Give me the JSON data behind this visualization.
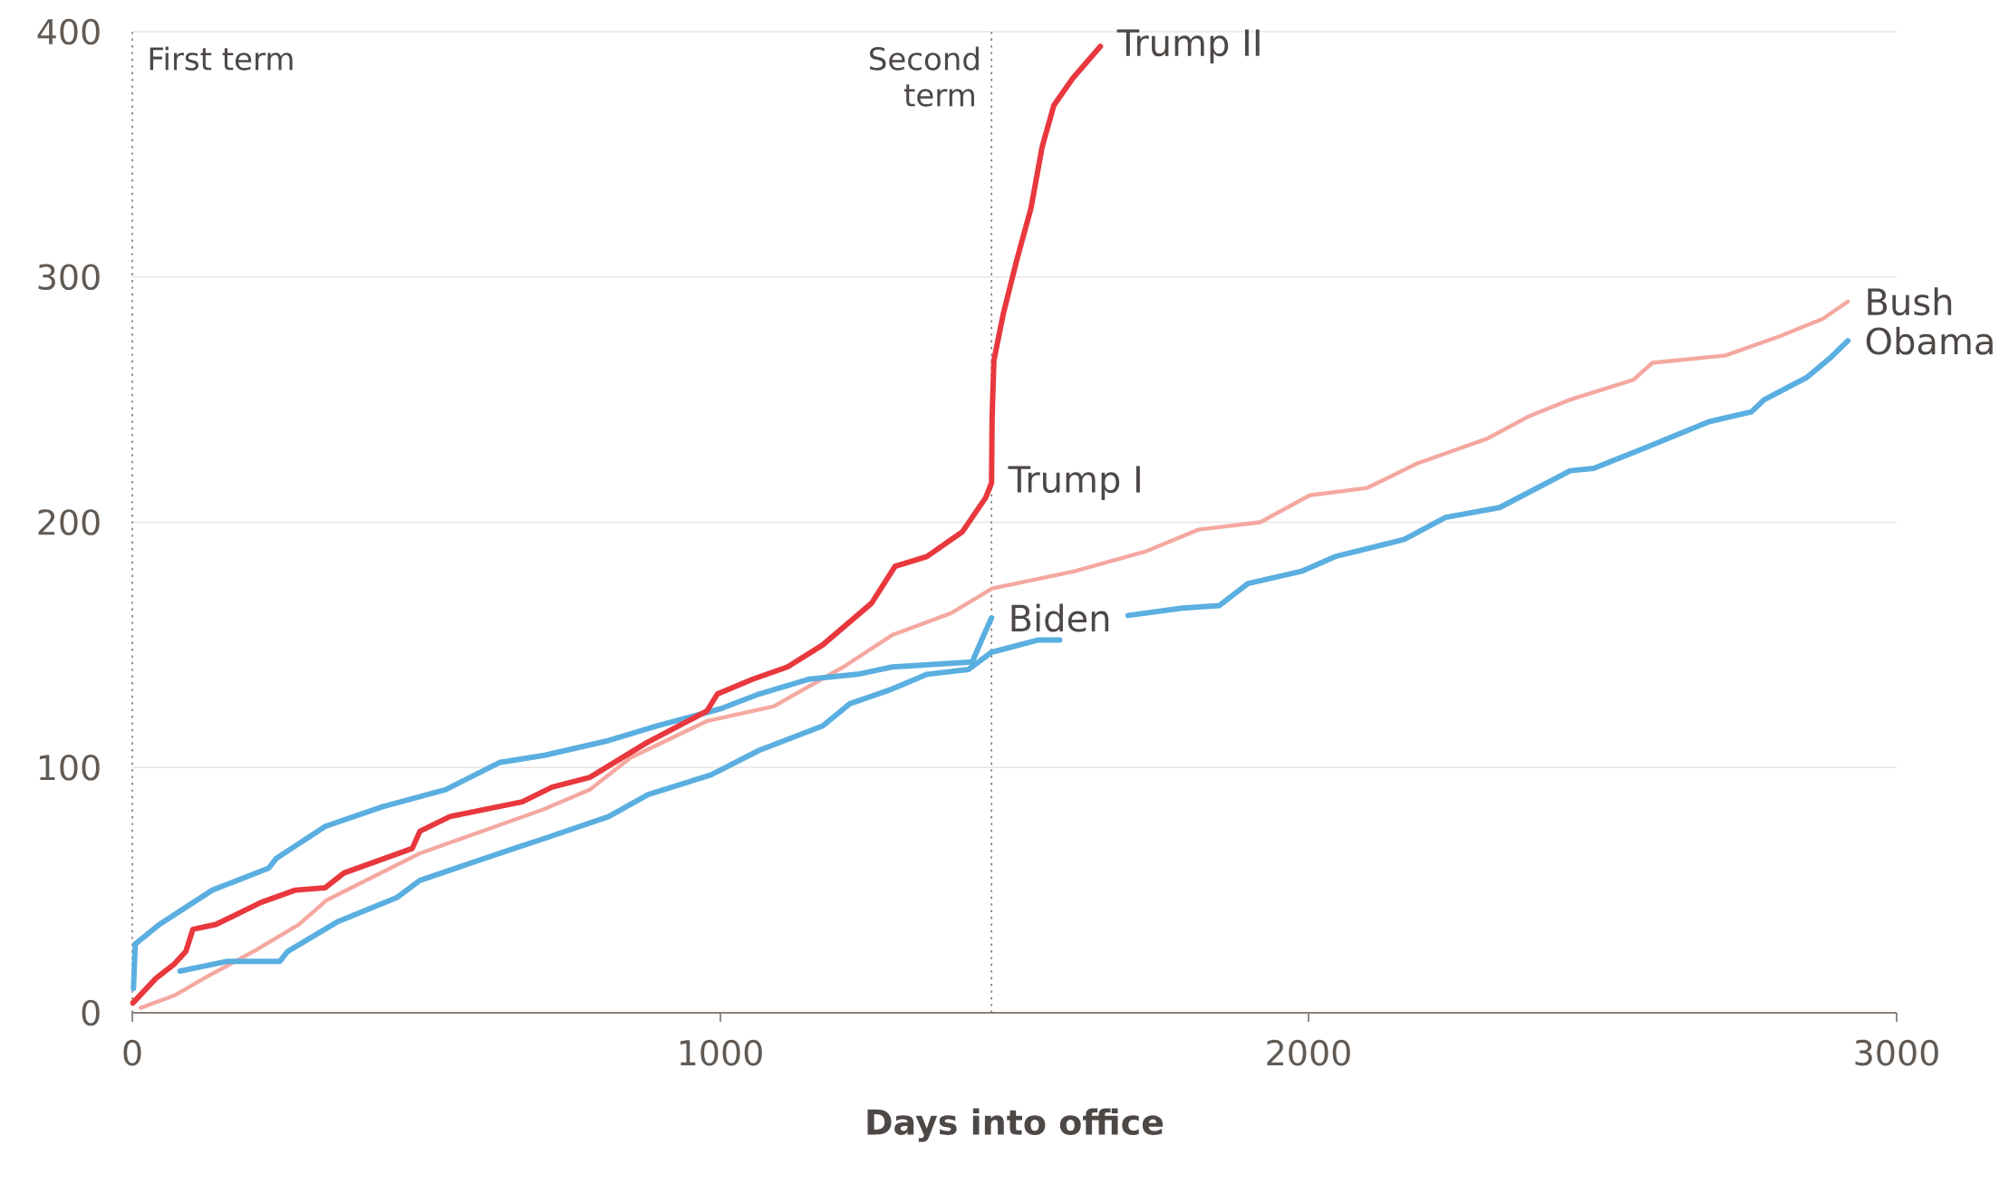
{
  "chart_data": {
    "type": "line",
    "xlabel": "Days into office",
    "xlim": [
      0,
      3000
    ],
    "xticks": [
      0,
      1000,
      2000,
      3000
    ],
    "ylim": [
      0,
      400
    ],
    "yticks": [
      0,
      100,
      200,
      300,
      400
    ],
    "grid": "y",
    "ref_lines": [
      {
        "axis": "x",
        "value": 0,
        "label": "First term",
        "color": "#7a7470",
        "line_style": "dotted"
      },
      {
        "axis": "x",
        "value": 1461,
        "label": "Second term",
        "color": "#7a7470",
        "line_style": "dotted"
      }
    ],
    "series": [
      {
        "name": "Bush",
        "color": "#f4a8a0",
        "x": [
          14,
          71,
          129,
          206,
          283,
          331,
          489,
          618,
          700,
          778,
          847,
          978,
          1091,
          1209,
          1292,
          1393,
          1462,
          1602,
          1722,
          1813,
          1918,
          2002,
          2100,
          2185,
          2303,
          2373,
          2445,
          2552,
          2585,
          2709,
          2803,
          2875,
          2917
        ],
        "values": [
          2,
          7,
          15,
          25,
          36,
          46,
          65,
          76,
          83,
          91,
          104,
          119,
          125,
          141,
          154,
          163,
          173,
          180,
          188,
          197,
          200,
          211,
          214,
          224,
          234,
          243,
          250,
          258,
          265,
          268,
          276,
          283,
          290
        ]
      },
      {
        "name": "Obama",
        "color": "#5aafe0",
        "x": [
          81,
          162,
          251,
          264,
          348,
          450,
          489,
          649,
          700,
          810,
          877,
          984,
          1066,
          1174,
          1220,
          1292,
          1351,
          1422,
          1461,
          1541,
          1577,
          1620,
          1693,
          1786,
          1848,
          1897,
          1988,
          2045,
          2163,
          2233,
          2325,
          2373,
          2445,
          2485,
          2569,
          2681,
          2753,
          2775,
          2847,
          2887,
          2917
        ],
        "values": [
          17,
          21,
          21,
          25,
          37,
          47,
          54,
          67,
          71,
          80,
          89,
          97,
          107,
          117,
          126,
          132,
          138,
          140,
          147,
          152,
          152,
          null,
          162,
          165,
          166,
          175,
          180,
          186,
          193,
          202,
          206,
          212,
          221,
          222,
          230,
          241,
          245,
          250,
          259,
          267,
          274
        ]
      },
      {
        "name": "Biden",
        "color": "#5aafe0",
        "x": [
          2,
          5,
          46,
          136,
          232,
          245,
          328,
          425,
          533,
          624,
          701,
          810,
          893,
          1001,
          1066,
          1150,
          1233,
          1292,
          1428,
          1446,
          1461
        ],
        "values": [
          10,
          28,
          36,
          50,
          59,
          63,
          76,
          84,
          91,
          102,
          105,
          111,
          117,
          124,
          130,
          136,
          138,
          141,
          143,
          153,
          161
        ]
      },
      {
        "color": "#e8383d",
        "x": [
          1,
          40,
          72,
          91,
          103,
          142,
          219,
          277,
          328,
          360,
          476,
          489,
          540,
          663,
          714,
          778,
          874,
          977,
          995,
          1055,
          1114,
          1174,
          1257,
          1297,
          1351,
          1411,
          1451,
          1461,
          1462,
          1465,
          1481,
          1504,
          1528,
          1547,
          1567,
          1599,
          1646
        ],
        "values": [
          4,
          14,
          20,
          25,
          34,
          36,
          45,
          50,
          51,
          57,
          67,
          74,
          80,
          86,
          92,
          96,
          110,
          123,
          130,
          136,
          141,
          150,
          167,
          182,
          186,
          196,
          210,
          216,
          243,
          266,
          285,
          307,
          328,
          353,
          370,
          381,
          394
        ]
      }
    ],
    "annotations": [
      {
        "text": "Trump I",
        "x": 1461,
        "y": 216
      },
      {
        "text": "Trump II",
        "x": 1646,
        "y": 394
      }
    ]
  }
}
